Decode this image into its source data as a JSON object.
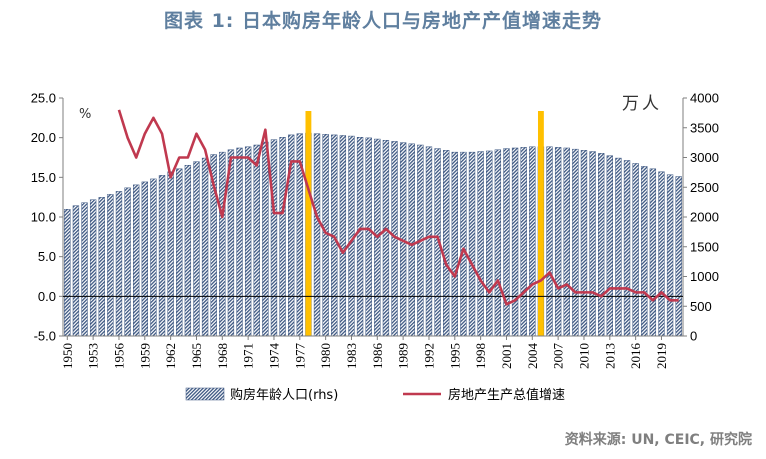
{
  "title": "图表 1:  日本购房年龄人口与房地产产值增速走势",
  "source": "资料来源: UN, CEIC, 研究院",
  "colors": {
    "title": "#5f7f9f",
    "bar": "#3a5580",
    "line": "#c0394f",
    "highlight": "#ffc000"
  },
  "chart_data": {
    "type": "bar+line",
    "left_axis": {
      "unit": "%",
      "range": [
        -5,
        25
      ],
      "ticks": [
        "-5.0",
        "0.0",
        "5.0",
        "10.0",
        "15.0",
        "20.0",
        "25.0"
      ]
    },
    "right_axis": {
      "unit": "万人",
      "range": [
        0,
        4000
      ],
      "ticks": [
        "0",
        "500",
        "1000",
        "1500",
        "2000",
        "2500",
        "3000",
        "3500",
        "4000"
      ]
    },
    "x_tick_labels": [
      "1950",
      "1953",
      "1956",
      "1959",
      "1962",
      "1965",
      "1968",
      "1971",
      "1974",
      "1977",
      "1980",
      "1983",
      "1986",
      "1989",
      "1992",
      "1995",
      "1998",
      "2001",
      "2004",
      "2007",
      "2010",
      "2013",
      "2016",
      "2019"
    ],
    "x": [
      1950,
      1951,
      1952,
      1953,
      1954,
      1955,
      1956,
      1957,
      1958,
      1959,
      1960,
      1961,
      1962,
      1963,
      1964,
      1965,
      1966,
      1967,
      1968,
      1969,
      1970,
      1971,
      1972,
      1973,
      1974,
      1975,
      1976,
      1977,
      1978,
      1979,
      1980,
      1981,
      1982,
      1983,
      1984,
      1985,
      1986,
      1987,
      1988,
      1989,
      1990,
      1991,
      1992,
      1993,
      1994,
      1995,
      1996,
      1997,
      1998,
      1999,
      2000,
      2001,
      2002,
      2003,
      2004,
      2005,
      2006,
      2007,
      2008,
      2009,
      2010,
      2011,
      2012,
      2013,
      2014,
      2015,
      2016,
      2017,
      2018,
      2019,
      2020,
      2021
    ],
    "highlight_years": [
      1978,
      2005
    ],
    "series": [
      {
        "name": "购房年龄人口(rhs)",
        "type": "bar",
        "axis": "right",
        "values": [
          2130,
          2190,
          2240,
          2290,
          2330,
          2380,
          2430,
          2490,
          2540,
          2590,
          2640,
          2700,
          2760,
          2810,
          2870,
          2930,
          2990,
          3050,
          3090,
          3130,
          3160,
          3180,
          3210,
          3260,
          3300,
          3340,
          3380,
          3400,
          3410,
          3400,
          3390,
          3380,
          3370,
          3360,
          3340,
          3330,
          3310,
          3290,
          3270,
          3250,
          3230,
          3210,
          3180,
          3150,
          3120,
          3090,
          3090,
          3090,
          3100,
          3110,
          3130,
          3150,
          3160,
          3170,
          3180,
          3180,
          3180,
          3170,
          3160,
          3140,
          3120,
          3100,
          3070,
          3030,
          2990,
          2950,
          2900,
          2850,
          2810,
          2760,
          2710,
          2680
        ]
      },
      {
        "name": "房地产生产总值增速",
        "type": "line",
        "axis": "left",
        "values": [
          null,
          null,
          null,
          null,
          null,
          null,
          23.5,
          20.0,
          17.5,
          20.5,
          22.5,
          20.5,
          15.0,
          17.5,
          17.5,
          20.5,
          18.5,
          14.0,
          10.0,
          17.5,
          17.5,
          17.5,
          16.5,
          21.0,
          10.5,
          10.5,
          17.0,
          17.0,
          13.5,
          10.0,
          8.0,
          7.5,
          5.5,
          7.0,
          8.5,
          8.5,
          7.5,
          8.5,
          7.5,
          7.0,
          6.5,
          7.0,
          7.5,
          7.5,
          4.0,
          2.5,
          6.0,
          4.0,
          2.0,
          0.5,
          2.0,
          -1.0,
          -0.5,
          0.5,
          1.5,
          2.0,
          3.0,
          1.0,
          1.5,
          0.5,
          0.5,
          0.5,
          0.0,
          1.0,
          1.0,
          1.0,
          0.5,
          0.5,
          -0.5,
          0.5,
          -0.5,
          -0.5
        ]
      }
    ]
  }
}
